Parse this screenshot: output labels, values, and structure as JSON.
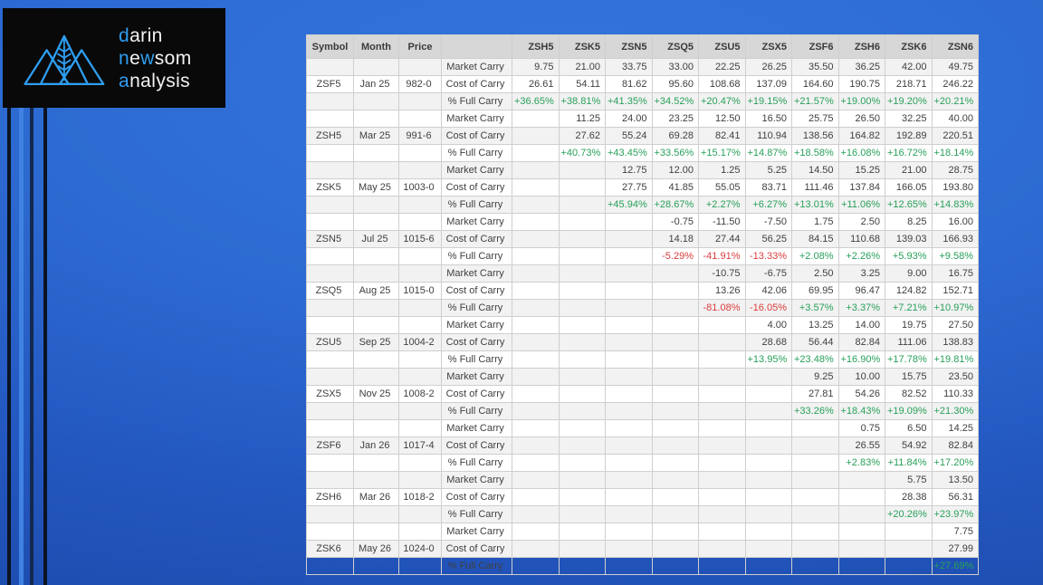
{
  "logo": {
    "bg_color": "#090909",
    "accent_color": "#2e9df0",
    "text_color": "#f2f2f2",
    "icon": "mountains-wheat-icon",
    "lines": [
      {
        "segments": [
          {
            "text": "d",
            "accent": true
          },
          {
            "text": "arin",
            "accent": false
          }
        ]
      },
      {
        "segments": [
          {
            "text": "n",
            "accent": true
          },
          {
            "text": "e",
            "accent": false
          },
          {
            "text": "w",
            "accent": true
          },
          {
            "text": "som",
            "accent": false
          }
        ]
      },
      {
        "segments": [
          {
            "text": "a",
            "accent": true
          },
          {
            "text": "nalysis",
            "accent": false
          }
        ]
      }
    ]
  },
  "table": {
    "columns": [
      "Symbol",
      "Month",
      "Price",
      "",
      "ZSH5",
      "ZSK5",
      "ZSN5",
      "ZSQ5",
      "ZSU5",
      "ZSX5",
      "ZSF6",
      "ZSH6",
      "ZSK6",
      "ZSN6"
    ],
    "row_types": [
      "Market Carry",
      "Cost of Carry",
      "% Full Carry"
    ],
    "colors": {
      "positive": "#28a05a",
      "negative": "#dc3c3c",
      "header_bg": "#d7d7d7",
      "stripe_bg": "#f2f2f2",
      "grid": "#cfcfcf",
      "text": "#404040"
    },
    "groups": [
      {
        "symbol": "ZSF5",
        "month": "Jan 25",
        "price": "982-0",
        "market_carry": [
          "9.75",
          "21.00",
          "33.75",
          "33.00",
          "22.25",
          "26.25",
          "35.50",
          "36.25",
          "42.00",
          "49.75"
        ],
        "cost_of_carry": [
          "26.61",
          "54.11",
          "81.62",
          "95.60",
          "108.68",
          "137.09",
          "164.60",
          "190.75",
          "218.71",
          "246.22"
        ],
        "pct_full_carry": [
          "+36.65%",
          "+38.81%",
          "+41.35%",
          "+34.52%",
          "+20.47%",
          "+19.15%",
          "+21.57%",
          "+19.00%",
          "+19.20%",
          "+20.21%"
        ]
      },
      {
        "symbol": "ZSH5",
        "month": "Mar 25",
        "price": "991-6",
        "market_carry": [
          "",
          "11.25",
          "24.00",
          "23.25",
          "12.50",
          "16.50",
          "25.75",
          "26.50",
          "32.25",
          "40.00"
        ],
        "cost_of_carry": [
          "",
          "27.62",
          "55.24",
          "69.28",
          "82.41",
          "110.94",
          "138.56",
          "164.82",
          "192.89",
          "220.51"
        ],
        "pct_full_carry": [
          "",
          "+40.73%",
          "+43.45%",
          "+33.56%",
          "+15.17%",
          "+14.87%",
          "+18.58%",
          "+16.08%",
          "+16.72%",
          "+18.14%"
        ]
      },
      {
        "symbol": "ZSK5",
        "month": "May 25",
        "price": "1003-0",
        "market_carry": [
          "",
          "",
          "12.75",
          "12.00",
          "1.25",
          "5.25",
          "14.50",
          "15.25",
          "21.00",
          "28.75"
        ],
        "cost_of_carry": [
          "",
          "",
          "27.75",
          "41.85",
          "55.05",
          "83.71",
          "111.46",
          "137.84",
          "166.05",
          "193.80"
        ],
        "pct_full_carry": [
          "",
          "",
          "+45.94%",
          "+28.67%",
          "+2.27%",
          "+6.27%",
          "+13.01%",
          "+11.06%",
          "+12.65%",
          "+14.83%"
        ]
      },
      {
        "symbol": "ZSN5",
        "month": "Jul 25",
        "price": "1015-6",
        "market_carry": [
          "",
          "",
          "",
          "-0.75",
          "-11.50",
          "-7.50",
          "1.75",
          "2.50",
          "8.25",
          "16.00"
        ],
        "cost_of_carry": [
          "",
          "",
          "",
          "14.18",
          "27.44",
          "56.25",
          "84.15",
          "110.68",
          "139.03",
          "166.93"
        ],
        "pct_full_carry": [
          "",
          "",
          "",
          "-5.29%",
          "-41.91%",
          "-13.33%",
          "+2.08%",
          "+2.26%",
          "+5.93%",
          "+9.58%"
        ]
      },
      {
        "symbol": "ZSQ5",
        "month": "Aug 25",
        "price": "1015-0",
        "market_carry": [
          "",
          "",
          "",
          "",
          "-10.75",
          "-6.75",
          "2.50",
          "3.25",
          "9.00",
          "16.75"
        ],
        "cost_of_carry": [
          "",
          "",
          "",
          "",
          "13.26",
          "42.06",
          "69.95",
          "96.47",
          "124.82",
          "152.71"
        ],
        "pct_full_carry": [
          "",
          "",
          "",
          "",
          "-81.08%",
          "-16.05%",
          "+3.57%",
          "+3.37%",
          "+7.21%",
          "+10.97%"
        ]
      },
      {
        "symbol": "ZSU5",
        "month": "Sep 25",
        "price": "1004-2",
        "market_carry": [
          "",
          "",
          "",
          "",
          "",
          "4.00",
          "13.25",
          "14.00",
          "19.75",
          "27.50"
        ],
        "cost_of_carry": [
          "",
          "",
          "",
          "",
          "",
          "28.68",
          "56.44",
          "82.84",
          "111.06",
          "138.83"
        ],
        "pct_full_carry": [
          "",
          "",
          "",
          "",
          "",
          "+13.95%",
          "+23.48%",
          "+16.90%",
          "+17.78%",
          "+19.81%"
        ]
      },
      {
        "symbol": "ZSX5",
        "month": "Nov 25",
        "price": "1008-2",
        "market_carry": [
          "",
          "",
          "",
          "",
          "",
          "",
          "9.25",
          "10.00",
          "15.75",
          "23.50"
        ],
        "cost_of_carry": [
          "",
          "",
          "",
          "",
          "",
          "",
          "27.81",
          "54.26",
          "82.52",
          "110.33"
        ],
        "pct_full_carry": [
          "",
          "",
          "",
          "",
          "",
          "",
          "+33.26%",
          "+18.43%",
          "+19.09%",
          "+21.30%"
        ]
      },
      {
        "symbol": "ZSF6",
        "month": "Jan 26",
        "price": "1017-4",
        "market_carry": [
          "",
          "",
          "",
          "",
          "",
          "",
          "",
          "0.75",
          "6.50",
          "14.25"
        ],
        "cost_of_carry": [
          "",
          "",
          "",
          "",
          "",
          "",
          "",
          "26.55",
          "54.92",
          "82.84"
        ],
        "pct_full_carry": [
          "",
          "",
          "",
          "",
          "",
          "",
          "",
          "+2.83%",
          "+11.84%",
          "+17.20%"
        ]
      },
      {
        "symbol": "ZSH6",
        "month": "Mar 26",
        "price": "1018-2",
        "market_carry": [
          "",
          "",
          "",
          "",
          "",
          "",
          "",
          "",
          "5.75",
          "13.50"
        ],
        "cost_of_carry": [
          "",
          "",
          "",
          "",
          "",
          "",
          "",
          "",
          "28.38",
          "56.31"
        ],
        "pct_full_carry": [
          "",
          "",
          "",
          "",
          "",
          "",
          "",
          "",
          "+20.26%",
          "+23.97%"
        ]
      },
      {
        "symbol": "ZSK6",
        "month": "May 26",
        "price": "1024-0",
        "market_carry": [
          "",
          "",
          "",
          "",
          "",
          "",
          "",
          "",
          "",
          "7.75"
        ],
        "cost_of_carry": [
          "",
          "",
          "",
          "",
          "",
          "",
          "",
          "",
          "",
          "27.99"
        ],
        "pct_full_carry": [
          "",
          "",
          "",
          "",
          "",
          "",
          "",
          "",
          "",
          "+27.69%"
        ]
      }
    ]
  }
}
